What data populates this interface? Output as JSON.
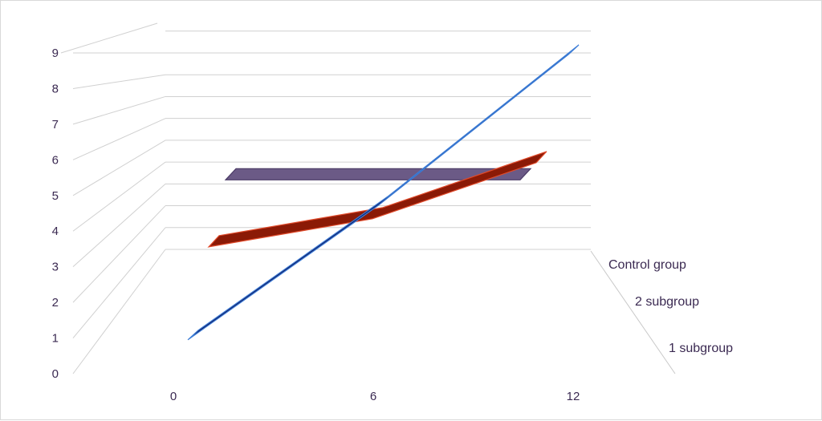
{
  "chart_data": {
    "type": "line",
    "style": "3d",
    "x": [
      "0",
      "6",
      "12"
    ],
    "y_ticks": [
      "0",
      "1",
      "2",
      "3",
      "4",
      "5",
      "6",
      "7",
      "8",
      "9"
    ],
    "ylim": [
      0,
      9
    ],
    "grid": true,
    "legend_position": "right, along depth axis",
    "series": [
      {
        "name": "Control group",
        "values": [
          3,
          3,
          3
        ],
        "color": "#6b5a86"
      },
      {
        "name": "2 subgroup",
        "values": [
          2,
          3,
          5
        ],
        "color": "#8b1a06"
      },
      {
        "name": "1 subgroup",
        "values": [
          0.5,
          4.5,
          9
        ],
        "color": "#0f1f6b"
      }
    ]
  }
}
